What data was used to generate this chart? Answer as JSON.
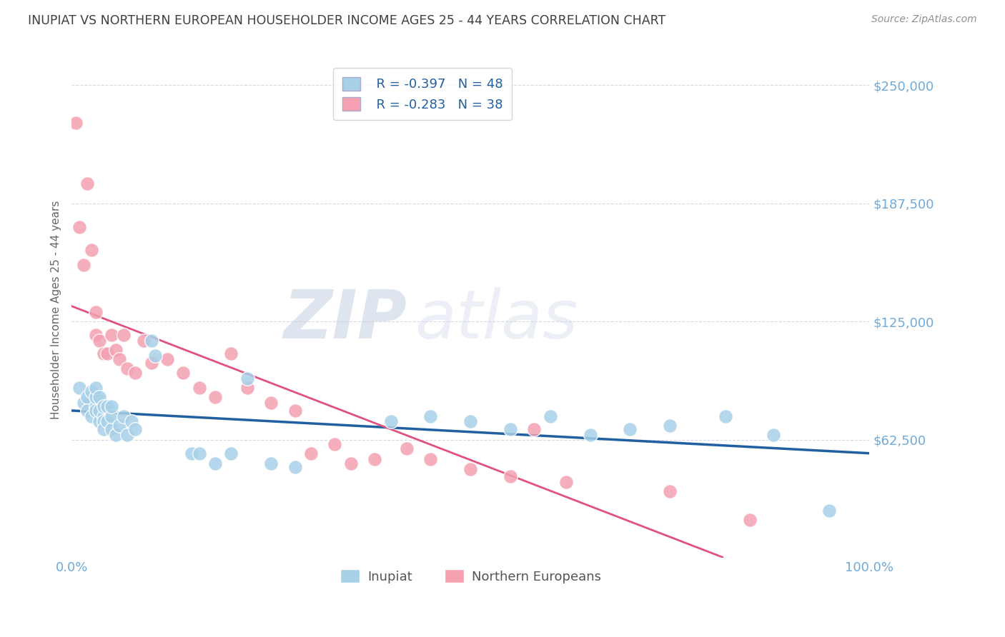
{
  "title": "INUPIAT VS NORTHERN EUROPEAN HOUSEHOLDER INCOME AGES 25 - 44 YEARS CORRELATION CHART",
  "source": "Source: ZipAtlas.com",
  "ylabel": "Householder Income Ages 25 - 44 years",
  "xlim": [
    0,
    1.0
  ],
  "ylim": [
    0,
    262500
  ],
  "yticks": [
    0,
    62500,
    125000,
    187500,
    250000
  ],
  "xtick_positions": [
    0,
    1.0
  ],
  "xtick_labels": [
    "0.0%",
    "100.0%"
  ],
  "watermark_zip": "ZIP",
  "watermark_atlas": "atlas",
  "legend_r1": "R = -0.397   N = 48",
  "legend_r2": "R = -0.283   N = 38",
  "legend_label1": "Inupiat",
  "legend_label2": "Northern Europeans",
  "blue_scatter_color": "#a8d0e8",
  "pink_scatter_color": "#f4a0b0",
  "blue_line_color": "#2060a0",
  "pink_line_color": "#e05080",
  "axis_tick_color": "#70aad8",
  "title_color": "#404040",
  "source_color": "#909090",
  "grid_color": "#d8d8e8",
  "background_color": "#ffffff",
  "inupiat_x": [
    0.01,
    0.015,
    0.02,
    0.02,
    0.025,
    0.025,
    0.03,
    0.03,
    0.03,
    0.03,
    0.035,
    0.035,
    0.035,
    0.04,
    0.04,
    0.04,
    0.04,
    0.045,
    0.045,
    0.05,
    0.05,
    0.05,
    0.055,
    0.06,
    0.065,
    0.07,
    0.075,
    0.08,
    0.1,
    0.105,
    0.15,
    0.16,
    0.18,
    0.2,
    0.22,
    0.25,
    0.28,
    0.4,
    0.45,
    0.5,
    0.55,
    0.6,
    0.65,
    0.7,
    0.75,
    0.82,
    0.88,
    0.95
  ],
  "inupiat_y": [
    90000,
    82000,
    85000,
    78000,
    88000,
    75000,
    80000,
    85000,
    90000,
    78000,
    72000,
    78000,
    85000,
    75000,
    80000,
    72000,
    68000,
    80000,
    72000,
    68000,
    75000,
    80000,
    65000,
    70000,
    75000,
    65000,
    72000,
    68000,
    115000,
    107000,
    55000,
    55000,
    50000,
    55000,
    95000,
    50000,
    48000,
    72000,
    75000,
    72000,
    68000,
    75000,
    65000,
    68000,
    70000,
    75000,
    65000,
    25000
  ],
  "ne_x": [
    0.005,
    0.01,
    0.015,
    0.02,
    0.025,
    0.03,
    0.03,
    0.035,
    0.04,
    0.045,
    0.05,
    0.055,
    0.06,
    0.065,
    0.07,
    0.08,
    0.09,
    0.1,
    0.12,
    0.14,
    0.16,
    0.18,
    0.2,
    0.22,
    0.25,
    0.28,
    0.3,
    0.33,
    0.35,
    0.38,
    0.42,
    0.45,
    0.5,
    0.55,
    0.58,
    0.62,
    0.75,
    0.85
  ],
  "ne_y": [
    230000,
    175000,
    155000,
    198000,
    163000,
    130000,
    118000,
    115000,
    108000,
    108000,
    118000,
    110000,
    105000,
    118000,
    100000,
    98000,
    115000,
    103000,
    105000,
    98000,
    90000,
    85000,
    108000,
    90000,
    82000,
    78000,
    55000,
    60000,
    50000,
    52000,
    58000,
    52000,
    47000,
    43000,
    68000,
    40000,
    35000,
    20000
  ]
}
